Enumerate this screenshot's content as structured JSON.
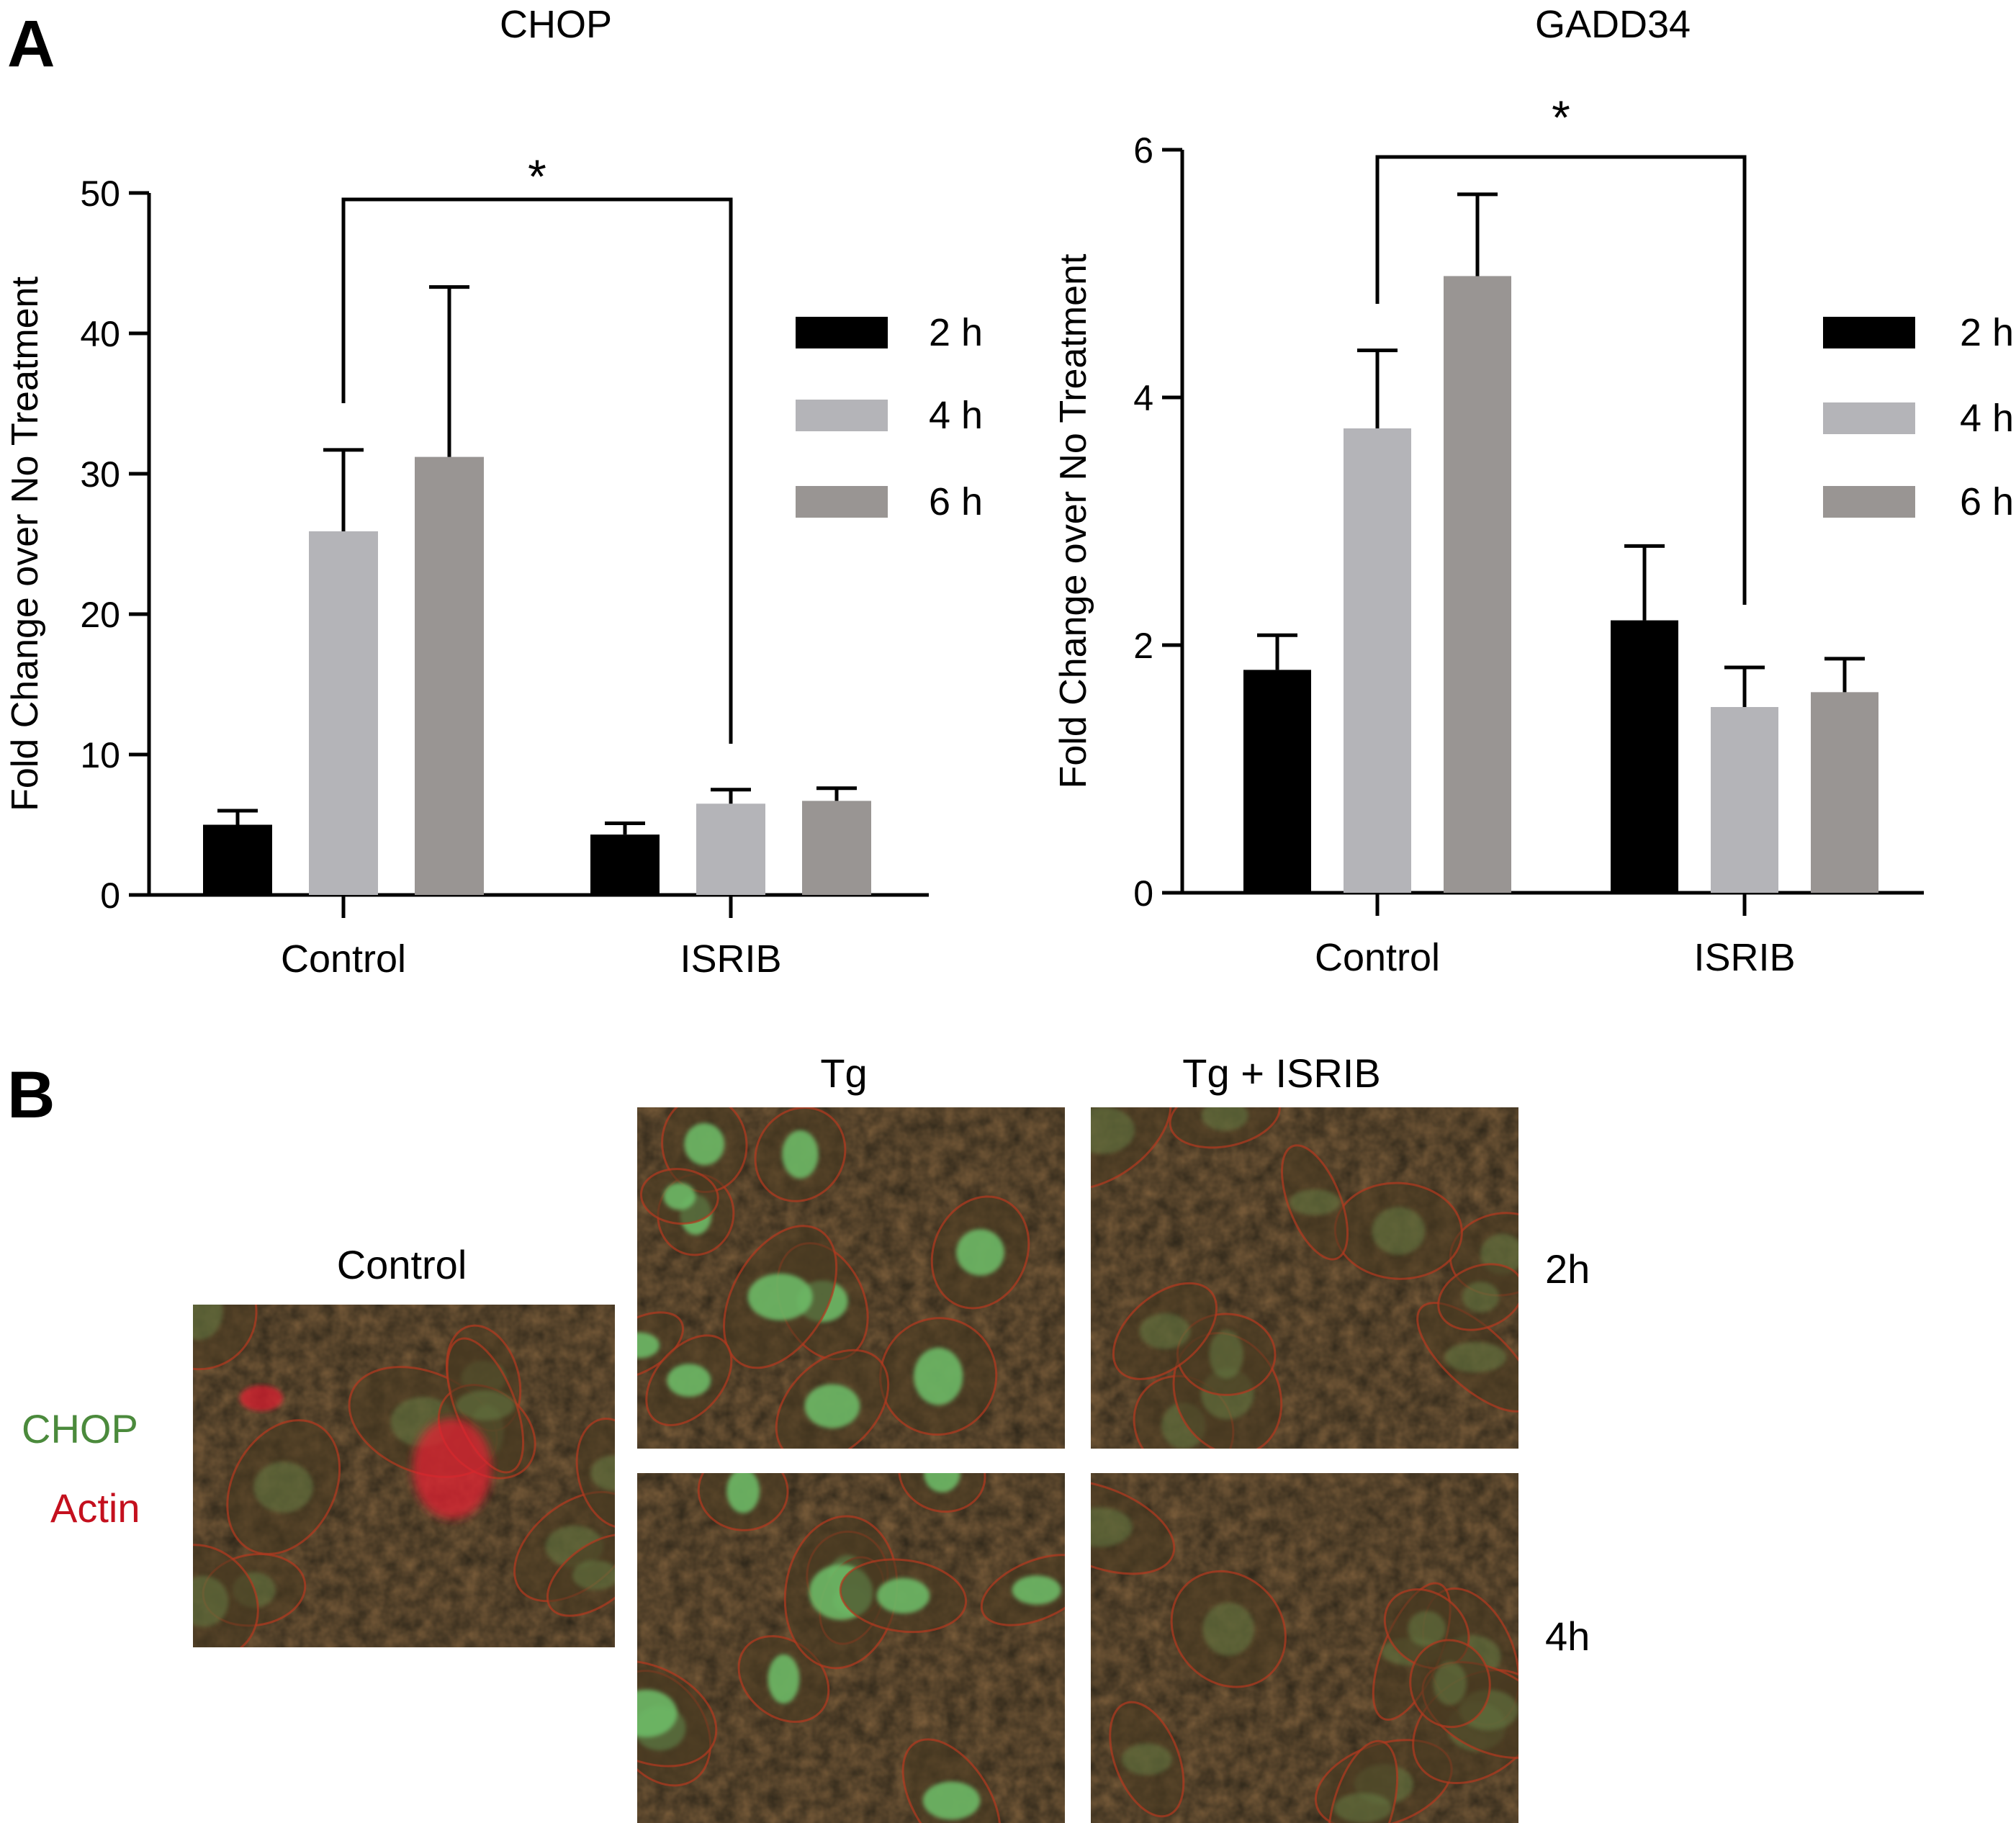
{
  "panel_a": {
    "letter": "A"
  },
  "panel_b": {
    "letter": "B",
    "col_headers": [
      "Tg",
      "Tg + ISRIB"
    ],
    "control_title": "Control",
    "row_labels": [
      "2h",
      "4h"
    ],
    "legend": [
      {
        "label": "CHOP",
        "color": "#4b8a3c"
      },
      {
        "label": "Actin",
        "color": "#c4101e"
      }
    ]
  },
  "colors": {
    "2h": "#000000",
    "4h": "#b4b4b8",
    "6h": "#999593"
  },
  "chart_data": [
    {
      "type": "bar",
      "title": "CHOP",
      "xlabel": "",
      "ylabel": "Fold Change over No Treatment",
      "categories": [
        "Control",
        "ISRIB"
      ],
      "ylim": [
        0,
        50
      ],
      "yticks": [
        0,
        10,
        20,
        30,
        40,
        50
      ],
      "series": [
        {
          "name": "2 h",
          "values": [
            5.0,
            4.3
          ],
          "errors": [
            1.0,
            0.8
          ]
        },
        {
          "name": "4 h",
          "values": [
            25.9,
            6.5
          ],
          "errors": [
            5.8,
            1.0
          ]
        },
        {
          "name": "6 h",
          "values": [
            31.2,
            6.7
          ],
          "errors": [
            12.1,
            0.9
          ]
        }
      ],
      "significance": {
        "from": "Control",
        "to": "ISRIB",
        "label": "*"
      },
      "legend_position": "right"
    },
    {
      "type": "bar",
      "title": "GADD34",
      "xlabel": "",
      "ylabel": "Fold Change over No Treatment",
      "categories": [
        "Control",
        "ISRIB"
      ],
      "ylim": [
        0,
        6
      ],
      "yticks": [
        0,
        2,
        4,
        6
      ],
      "series": [
        {
          "name": "2 h",
          "values": [
            1.8,
            2.2
          ],
          "errors": [
            0.28,
            0.6
          ]
        },
        {
          "name": "4 h",
          "values": [
            3.75,
            1.5
          ],
          "errors": [
            0.63,
            0.32
          ]
        },
        {
          "name": "6 h",
          "values": [
            4.98,
            1.62
          ],
          "errors": [
            0.66,
            0.27
          ]
        }
      ],
      "significance": {
        "from": "Control",
        "to": "ISRIB",
        "label": "*"
      },
      "legend_position": "right"
    }
  ]
}
